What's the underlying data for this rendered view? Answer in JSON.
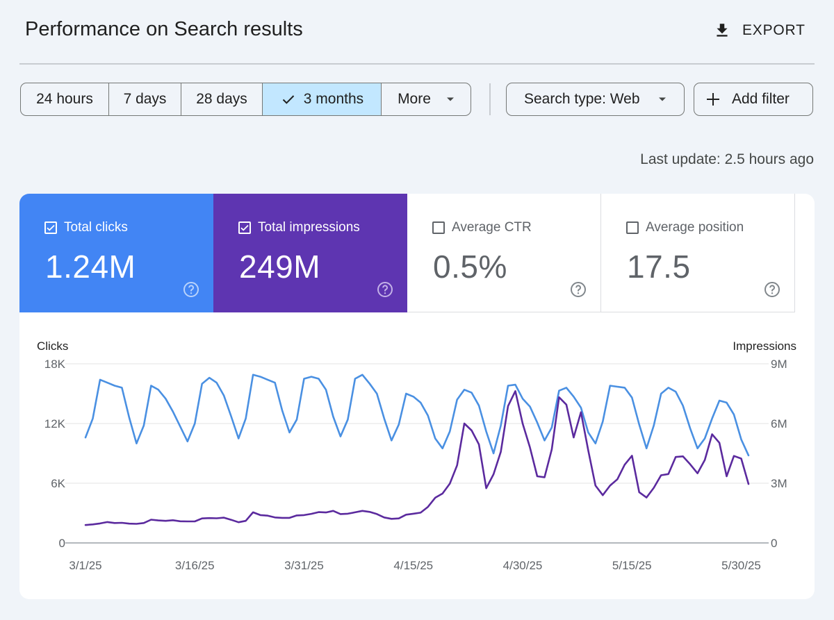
{
  "header": {
    "title": "Performance on Search results",
    "export_label": "EXPORT",
    "export_icon": "download-icon"
  },
  "date_range": {
    "options": [
      "24 hours",
      "7 days",
      "28 days",
      "3 months",
      "More"
    ],
    "selected": "3 months"
  },
  "filters": {
    "search_type": "Search type: Web",
    "add_filter": "Add filter"
  },
  "last_update": "Last update: 2.5 hours ago",
  "colors": {
    "clicks": "#4285f4",
    "impressions": "#5e35b1",
    "clicks_line": "#4a90e2",
    "impressions_line": "#5b2a9e"
  },
  "metrics": [
    {
      "label": "Total clicks",
      "value": "1.24M",
      "checked": true
    },
    {
      "label": "Total impressions",
      "value": "249M",
      "checked": true
    },
    {
      "label": "Average CTR",
      "value": "0.5%",
      "checked": false
    },
    {
      "label": "Average position",
      "value": "17.5",
      "checked": false
    }
  ],
  "chart_data": {
    "type": "line",
    "left_axis_label": "Clicks",
    "right_axis_label": "Impressions",
    "left_ticks": [
      "0",
      "6K",
      "12K",
      "18K"
    ],
    "right_ticks": [
      "0",
      "3M",
      "6M",
      "9M"
    ],
    "left_ylim": [
      0,
      18000
    ],
    "right_ylim": [
      0,
      9000000
    ],
    "x_tick_labels": [
      "3/1/25",
      "3/16/25",
      "3/31/25",
      "4/15/25",
      "4/30/25",
      "5/15/25",
      "5/30/25"
    ],
    "series": [
      {
        "name": "Clicks",
        "axis": "left",
        "values": [
          10600,
          12500,
          16400,
          16100,
          15800,
          15600,
          12600,
          10000,
          11800,
          15800,
          15400,
          14500,
          13200,
          11700,
          10200,
          12000,
          16000,
          16600,
          16100,
          14800,
          12700,
          10500,
          12500,
          16900,
          16700,
          16400,
          16100,
          13300,
          11100,
          12400,
          16500,
          16700,
          16500,
          15400,
          12700,
          10700,
          12400,
          16500,
          16900,
          16000,
          15000,
          12500,
          10300,
          11900,
          15000,
          14700,
          14100,
          12800,
          10500,
          9500,
          11200,
          14400,
          15400,
          15100,
          13800,
          11200,
          9000,
          11800,
          15800,
          15900,
          14500,
          13700,
          12100,
          10300,
          11600,
          15300,
          15600,
          14700,
          13600,
          11100,
          10000,
          12200,
          15800,
          15700,
          15600,
          14600,
          11900,
          9500,
          11800,
          15000,
          15600,
          15200,
          13800,
          11500,
          9500,
          10500,
          12500,
          14300,
          14100,
          12900,
          10400,
          8800
        ]
      },
      {
        "name": "Impressions",
        "axis": "right",
        "values": [
          900000,
          930000,
          980000,
          1050000,
          1000000,
          1010000,
          970000,
          960000,
          1000000,
          1170000,
          1130000,
          1110000,
          1140000,
          1090000,
          1080000,
          1080000,
          1230000,
          1250000,
          1240000,
          1270000,
          1160000,
          1040000,
          1110000,
          1540000,
          1400000,
          1370000,
          1280000,
          1260000,
          1260000,
          1380000,
          1400000,
          1460000,
          1550000,
          1530000,
          1610000,
          1450000,
          1470000,
          1540000,
          1610000,
          1560000,
          1450000,
          1280000,
          1210000,
          1230000,
          1420000,
          1470000,
          1520000,
          1810000,
          2270000,
          2480000,
          2980000,
          3900000,
          6000000,
          5650000,
          4950000,
          2750000,
          3450000,
          4580000,
          6880000,
          7630000,
          6000000,
          4800000,
          3350000,
          3300000,
          4700000,
          7320000,
          6950000,
          5300000,
          6570000,
          4650000,
          2880000,
          2400000,
          2880000,
          3200000,
          3930000,
          4380000,
          2550000,
          2280000,
          2770000,
          3400000,
          3460000,
          4320000,
          4350000,
          3950000,
          3500000,
          4170000,
          5460000,
          5030000,
          3350000,
          4370000,
          4240000,
          2960000
        ]
      }
    ]
  }
}
